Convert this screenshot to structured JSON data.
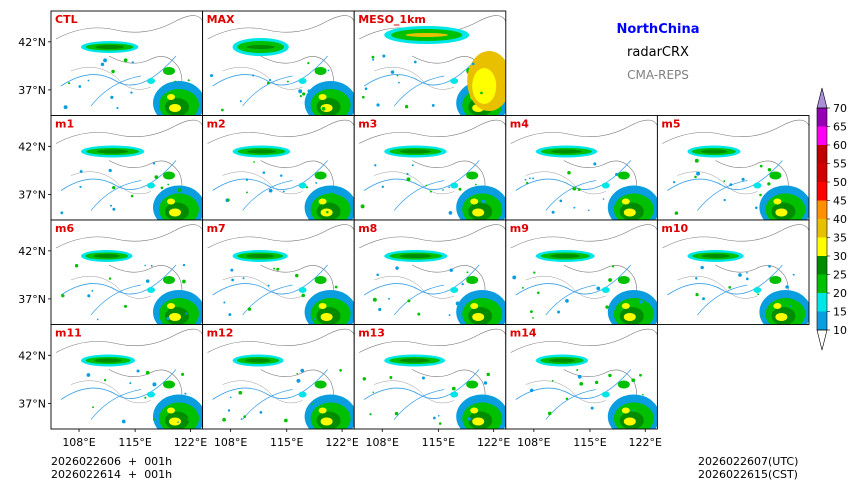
{
  "header": {
    "region": "NorthChina",
    "product": "radarCRX",
    "system": "CMA-REPS"
  },
  "footer": {
    "init_utc": "2026022606  +  001h",
    "init_cst": "2026022614  +  001h",
    "valid_utc": "2026022607(UTC)",
    "valid_cst": "2026022615(CST)"
  },
  "chart_data": {
    "type": "map-panels",
    "variable": "radarCRX",
    "panels": [
      "CTL",
      "MAX",
      "MESO_1km",
      "m1",
      "m2",
      "m3",
      "m4",
      "m5",
      "m6",
      "m7",
      "m8",
      "m9",
      "m10",
      "m11",
      "m12",
      "m13",
      "m14"
    ],
    "panel_label_color": "#e00000",
    "lon_ticks": [
      "108°E",
      "115°E",
      "122°E"
    ],
    "lat_ticks": [
      "42°N",
      "37°N"
    ],
    "colorbar": {
      "levels": [
        10,
        15,
        20,
        25,
        30,
        35,
        40,
        45,
        50,
        55,
        60,
        65,
        70
      ],
      "colors": [
        "#0a9ee0",
        "#00e6e6",
        "#00c000",
        "#008c00",
        "#ffff00",
        "#e8c000",
        "#ff9000",
        "#ff0000",
        "#d00000",
        "#c00000",
        "#ff00f0",
        "#9600b4",
        "#aa90dc"
      ],
      "extend": "both"
    }
  }
}
